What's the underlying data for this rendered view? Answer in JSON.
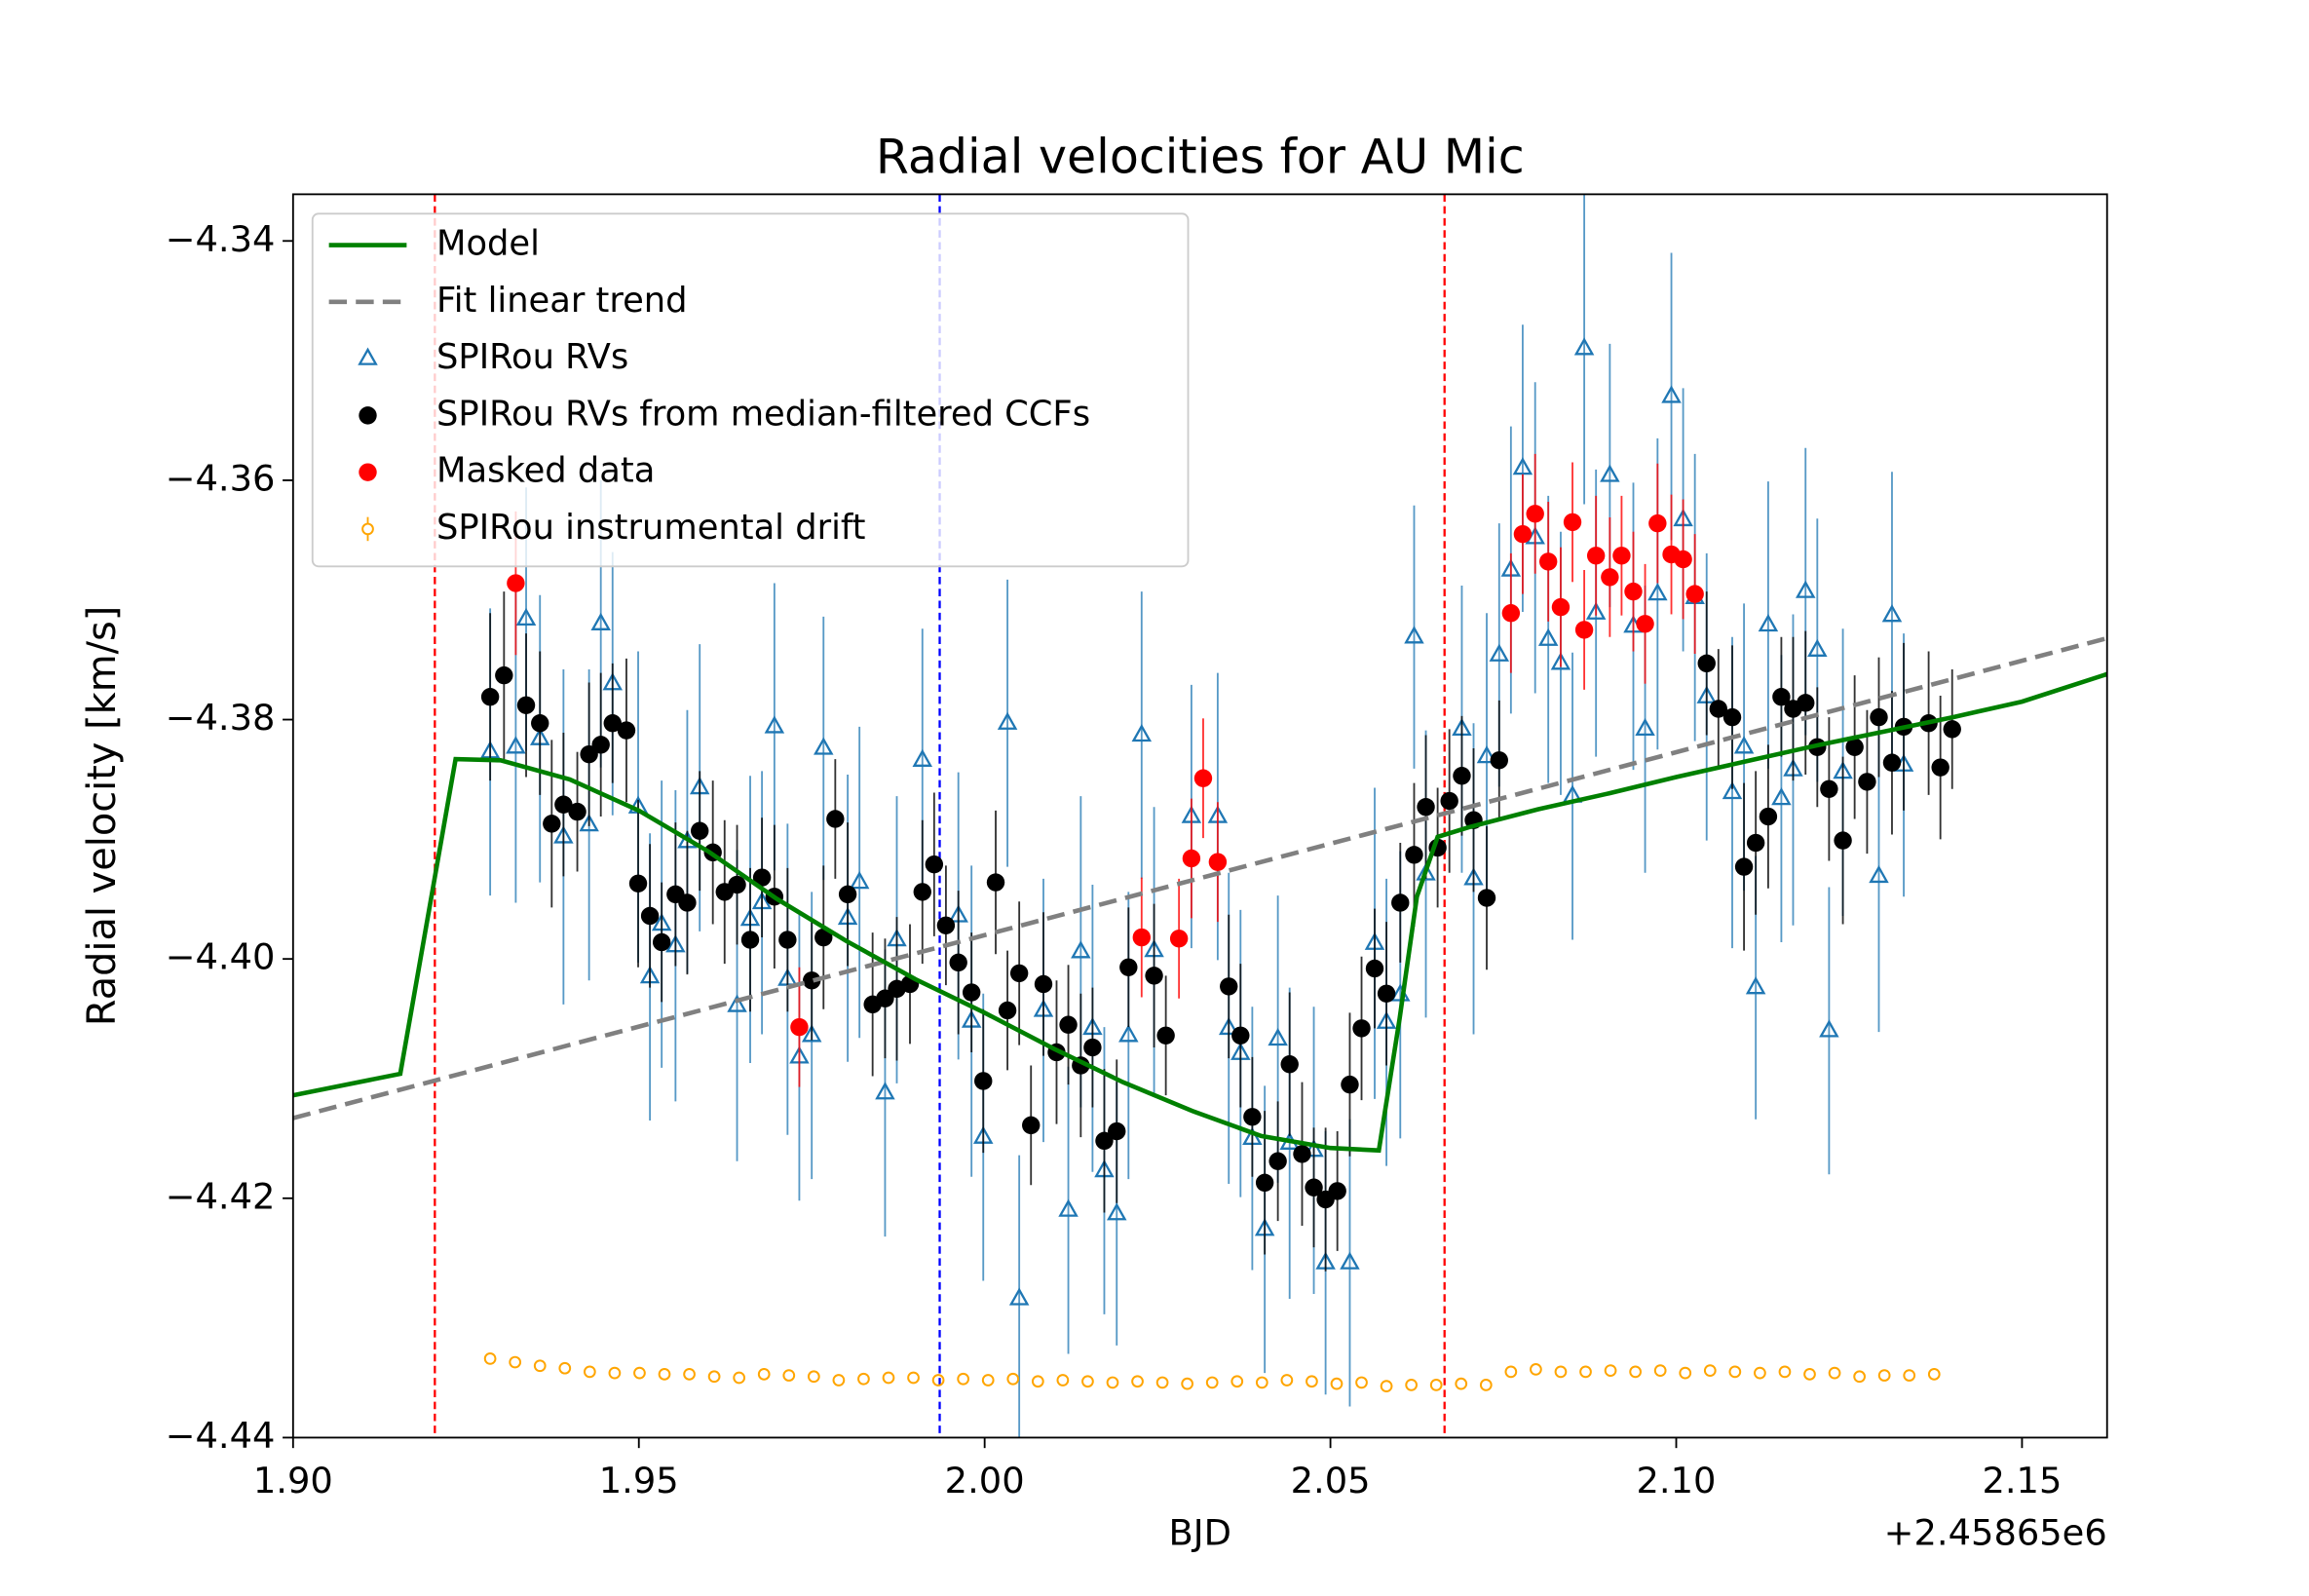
{
  "chart_data": {
    "type": "scatter",
    "title": "Radial velocities for AU Mic",
    "x_label": "BJD",
    "y_label": "Radial velocity [km/s]",
    "x_offset_label": "+2.45865e6",
    "xlim": [
      1.9,
      2.1623
    ],
    "ylim": [
      -4.44,
      -4.3361
    ],
    "xticks": [
      {
        "value": 1.9,
        "label": "1.90"
      },
      {
        "value": 1.95,
        "label": "1.95"
      },
      {
        "value": 2.0,
        "label": "2.00"
      },
      {
        "value": 2.05,
        "label": "2.05"
      },
      {
        "value": 2.1,
        "label": "2.10"
      },
      {
        "value": 2.15,
        "label": "2.15"
      }
    ],
    "yticks": [
      {
        "value": -4.44,
        "label": "−4.44"
      },
      {
        "value": -4.42,
        "label": "−4.42"
      },
      {
        "value": -4.4,
        "label": "−4.40"
      },
      {
        "value": -4.38,
        "label": "−4.38"
      },
      {
        "value": -4.36,
        "label": "−4.36"
      },
      {
        "value": -4.34,
        "label": "−4.34"
      }
    ],
    "grid": false,
    "legend": "upper left",
    "vlines": [
      {
        "value": 1.9205,
        "color": "#ff0000"
      },
      {
        "value": 1.9935,
        "color": "#0000ff"
      },
      {
        "value": 2.0665,
        "color": "#ff0000"
      }
    ],
    "series": [
      {
        "name": "Model",
        "color": "#008000",
        "marker": "line",
        "x": [
          1.9,
          1.9155,
          1.9235,
          1.93,
          1.94,
          1.95,
          1.96,
          1.97,
          1.98,
          1.99,
          2.0,
          2.01,
          2.02,
          2.03,
          2.04,
          2.05,
          2.057,
          2.06,
          2.0625,
          2.0655,
          2.07,
          2.08,
          2.09,
          2.1,
          2.11,
          2.12,
          2.13,
          2.14,
          2.15,
          2.1623
        ],
        "values": [
          -4.4114,
          -4.4096,
          -4.3833,
          -4.3834,
          -4.385,
          -4.3876,
          -4.391,
          -4.395,
          -4.3985,
          -4.4017,
          -4.4045,
          -4.4075,
          -4.4103,
          -4.4127,
          -4.4148,
          -4.4158,
          -4.416,
          -4.405,
          -4.3948,
          -4.3898,
          -4.389,
          -4.3875,
          -4.3862,
          -4.3848,
          -4.3835,
          -4.3822,
          -4.381,
          -4.3798,
          -4.3785,
          -4.3762
        ]
      },
      {
        "name": "Fit linear trend",
        "color": "#808080",
        "marker": "dashed",
        "x": [
          1.9,
          2.1623
        ],
        "values": [
          -4.4133,
          -4.3732
        ]
      },
      {
        "name": "SPIRou RVs",
        "color": "#1f77b4",
        "marker": "triangle",
        "x": [
          1.9285,
          1.9322,
          1.9337,
          1.9357,
          1.9391,
          1.9428,
          1.9445,
          1.9462,
          1.9499,
          1.9516,
          1.9533,
          1.9553,
          1.957,
          1.9588,
          1.9642,
          1.9661,
          1.9678,
          1.9696,
          1.9715,
          1.9732,
          1.975,
          1.9767,
          1.9802,
          1.9819,
          1.9856,
          1.9873,
          1.991,
          1.9962,
          1.9981,
          1.9998,
          2.0033,
          2.005,
          2.0085,
          2.0121,
          2.0139,
          2.0156,
          2.0173,
          2.0191,
          2.0208,
          2.0227,
          2.0245,
          2.0299,
          2.0337,
          2.0353,
          2.037,
          2.0387,
          2.0405,
          2.0424,
          2.0441,
          2.0476,
          2.0493,
          2.0528,
          2.0564,
          2.0581,
          2.0601,
          2.0621,
          2.0638,
          2.069,
          2.0707,
          2.0726,
          2.0744,
          2.0761,
          2.0778,
          2.0796,
          2.0815,
          2.0833,
          2.085,
          2.0867,
          2.0884,
          2.0904,
          2.0938,
          2.0955,
          2.0973,
          2.0993,
          2.101,
          2.1027,
          2.1044,
          2.1081,
          2.1098,
          2.1115,
          2.1133,
          2.1152,
          2.1169,
          2.1187,
          2.1204,
          2.1221,
          2.1241,
          2.1293,
          2.1312,
          2.1329
        ],
        "values": [
          -4.3827,
          -4.3823,
          -4.3716,
          -4.3816,
          -4.3898,
          -4.3888,
          -4.372,
          -4.377,
          -4.3873,
          -4.4015,
          -4.3971,
          -4.3989,
          -4.3902,
          -4.3857,
          -4.4039,
          -4.3967,
          -4.3953,
          -4.3806,
          -4.4017,
          -4.4082,
          -4.4064,
          -4.3824,
          -4.3966,
          -4.3936,
          -4.4112,
          -4.3984,
          -4.3834,
          -4.3964,
          -4.4052,
          -4.4149,
          -4.3803,
          -4.4284,
          -4.4043,
          -4.421,
          -4.3994,
          -4.4058,
          -4.4177,
          -4.4213,
          -4.4064,
          -4.3813,
          -4.3993,
          -4.3881,
          -4.3881,
          -4.4058,
          -4.4079,
          -4.415,
          -4.4226,
          -4.4067,
          -4.4154,
          -4.416,
          -4.4254,
          -4.4254,
          -4.3987,
          -4.4053,
          -4.403,
          -4.3731,
          -4.3929,
          -4.3808,
          -4.3933,
          -4.3831,
          -4.3746,
          -4.3675,
          -4.359,
          -4.3648,
          -4.3733,
          -4.3753,
          -4.3864,
          -4.349,
          -4.3711,
          -4.3596,
          -4.3722,
          -4.3808,
          -4.3695,
          -4.353,
          -4.3633,
          -4.3698,
          -4.3781,
          -4.3861,
          -4.3823,
          -4.4024,
          -4.3721,
          -4.3866,
          -4.3842,
          -4.3693,
          -4.3742,
          -4.406,
          -4.3844,
          -4.3931,
          -4.3713,
          -4.3838
        ],
        "errors": [
          0.012,
          0.013,
          0.011,
          0.012,
          0.014,
          0.013,
          0.012,
          0.011,
          0.013,
          0.012,
          0.012,
          0.013,
          0.011,
          0.012,
          0.013,
          0.012,
          0.011,
          0.012,
          0.013,
          0.012,
          0.012,
          0.011,
          0.012,
          0.013,
          0.012,
          0.012,
          0.011,
          0.012,
          0.013,
          0.012,
          0.012,
          0.012,
          0.011,
          0.012,
          0.013,
          0.012,
          0.012,
          0.011,
          0.012,
          0.012,
          0.012,
          0.011,
          0.012,
          0.013,
          0.012,
          0.011,
          0.012,
          0.012,
          0.013,
          0.012,
          0.011,
          0.012,
          0.013,
          0.012,
          0.012,
          0.011,
          0.012,
          0.012,
          0.013,
          0.012,
          0.011,
          0.012,
          0.012,
          0.013,
          0.012,
          0.011,
          0.012,
          0.013,
          0.012,
          0.011,
          0.012,
          0.012,
          0.013,
          0.012,
          0.011,
          0.012,
          0.012,
          0.013,
          0.012,
          0.011,
          0.012,
          0.012,
          0.013,
          0.012,
          0.011,
          0.012,
          0.012,
          0.013,
          0.012,
          0.011
        ]
      },
      {
        "name": "SPIRou RVs from median-filtered CCFs",
        "color": "#000000",
        "marker": "circle",
        "x": [
          1.9285,
          1.9305,
          1.9337,
          1.9357,
          1.9374,
          1.9391,
          1.9411,
          1.9428,
          1.9445,
          1.9462,
          1.9482,
          1.9499,
          1.9516,
          1.9533,
          1.9553,
          1.957,
          1.9588,
          1.9607,
          1.9624,
          1.9642,
          1.9661,
          1.9678,
          1.9696,
          1.9715,
          1.975,
          1.9767,
          1.9784,
          1.9802,
          1.9838,
          1.9856,
          1.9873,
          1.9892,
          1.991,
          1.9927,
          1.9944,
          1.9962,
          1.9981,
          1.9998,
          2.0016,
          2.0033,
          2.005,
          2.0067,
          2.0085,
          2.0104,
          2.0121,
          2.0139,
          2.0156,
          2.0173,
          2.0191,
          2.0208,
          2.0245,
          2.0262,
          2.0353,
          2.037,
          2.0387,
          2.0405,
          2.0424,
          2.0441,
          2.0459,
          2.0476,
          2.0493,
          2.051,
          2.0528,
          2.0545,
          2.0564,
          2.0581,
          2.0601,
          2.0621,
          2.0638,
          2.0655,
          2.0672,
          2.069,
          2.0707,
          2.0726,
          2.0744,
          2.1044,
          2.1061,
          2.1081,
          2.1098,
          2.1115,
          2.1133,
          2.1152,
          2.1169,
          2.1187,
          2.1204,
          2.1221,
          2.1241,
          2.1258,
          2.1276,
          2.1293,
          2.1312,
          2.1329,
          2.1365,
          2.1382,
          2.1399
        ],
        "values": [
          -4.3781,
          -4.3763,
          -4.3788,
          -4.3803,
          -4.3887,
          -4.3871,
          -4.3877,
          -4.3829,
          -4.3821,
          -4.3803,
          -4.3809,
          -4.3937,
          -4.3964,
          -4.3986,
          -4.3946,
          -4.3953,
          -4.3893,
          -4.3911,
          -4.3944,
          -4.3938,
          -4.3984,
          -4.3932,
          -4.3948,
          -4.3984,
          -4.4018,
          -4.3982,
          -4.3883,
          -4.3946,
          -4.4038,
          -4.4033,
          -4.4025,
          -4.4021,
          -4.3944,
          -4.3921,
          -4.3972,
          -4.4003,
          -4.4028,
          -4.4102,
          -4.3936,
          -4.4043,
          -4.4012,
          -4.4139,
          -4.4021,
          -4.4078,
          -4.4055,
          -4.4089,
          -4.4074,
          -4.4152,
          -4.4144,
          -4.4007,
          -4.4014,
          -4.4064,
          -4.4023,
          -4.4064,
          -4.4132,
          -4.4187,
          -4.4169,
          -4.4088,
          -4.4163,
          -4.4191,
          -4.4201,
          -4.4194,
          -4.4105,
          -4.4058,
          -4.4008,
          -4.4029,
          -4.3953,
          -4.3913,
          -4.3873,
          -4.3907,
          -4.3868,
          -4.3847,
          -4.3884,
          -4.3949,
          -4.3834,
          -4.3753,
          -4.3791,
          -4.3798,
          -4.3923,
          -4.3903,
          -4.3881,
          -4.3781,
          -4.3791,
          -4.3786,
          -4.3823,
          -4.3858,
          -4.3901,
          -4.3823,
          -4.3852,
          -4.3798,
          -4.3836,
          -4.3806,
          -4.3803,
          -4.384,
          -4.3808
        ],
        "errors": [
          0.007,
          0.007,
          0.006,
          0.006,
          0.007,
          0.006,
          0.005,
          0.006,
          0.006,
          0.005,
          0.006,
          0.007,
          0.006,
          0.005,
          0.006,
          0.006,
          0.005,
          0.006,
          0.006,
          0.005,
          0.006,
          0.005,
          0.006,
          0.006,
          0.005,
          0.006,
          0.005,
          0.006,
          0.006,
          0.005,
          0.006,
          0.005,
          0.006,
          0.006,
          0.005,
          0.006,
          0.005,
          0.006,
          0.006,
          0.005,
          0.006,
          0.005,
          0.006,
          0.006,
          0.005,
          0.006,
          0.005,
          0.006,
          0.006,
          0.005,
          0.006,
          0.005,
          0.006,
          0.006,
          0.005,
          0.006,
          0.005,
          0.006,
          0.006,
          0.005,
          0.006,
          0.005,
          0.006,
          0.006,
          0.005,
          0.006,
          0.005,
          0.006,
          0.006,
          0.005,
          0.006,
          0.005,
          0.006,
          0.006,
          0.005,
          0.006,
          0.005,
          0.006,
          0.007,
          0.006,
          0.006,
          0.005,
          0.006,
          0.006,
          0.005,
          0.006,
          0.007,
          0.006,
          0.006,
          0.005,
          0.006,
          0.007,
          0.006,
          0.006,
          0.005
        ]
      },
      {
        "name": "Masked data",
        "color": "#ff0000",
        "marker": "circle",
        "x": [
          1.9322,
          1.9732,
          2.0227,
          2.0281,
          2.0299,
          2.0316,
          2.0337,
          2.0761,
          2.0778,
          2.0796,
          2.0815,
          2.0833,
          2.085,
          2.0867,
          2.0884,
          2.0904,
          2.0921,
          2.0938,
          2.0955,
          2.0973,
          2.0993,
          2.101,
          2.1027
        ],
        "values": [
          -4.3686,
          -4.4057,
          -4.3982,
          -4.3983,
          -4.3916,
          -4.3849,
          -4.3919,
          -4.3711,
          -4.3645,
          -4.3628,
          -4.3668,
          -4.3706,
          -4.3635,
          -4.3725,
          -4.3663,
          -4.3681,
          -4.3663,
          -4.3693,
          -4.372,
          -4.3636,
          -4.3662,
          -4.3666,
          -4.3695
        ],
        "errors": [
          0.006,
          0.005,
          0.005,
          0.005,
          0.005,
          0.005,
          0.005,
          0.005,
          0.005,
          0.005,
          0.005,
          0.005,
          0.005,
          0.005,
          0.005,
          0.005,
          0.005,
          0.005,
          0.005,
          0.005,
          0.005,
          0.005,
          0.005
        ]
      },
      {
        "name": "SPIRou instrumental drift",
        "color": "#ffa500",
        "marker": "open-circle",
        "x": [
          1.9285,
          1.9321,
          1.9357,
          1.9393,
          1.9429,
          1.9465,
          1.9501,
          1.9537,
          1.9573,
          1.9609,
          1.9645,
          1.9681,
          1.9717,
          1.9753,
          1.9789,
          1.9825,
          1.9861,
          1.9897,
          1.9933,
          1.9969,
          2.0005,
          2.0041,
          2.0077,
          2.0113,
          2.0149,
          2.0185,
          2.0221,
          2.0257,
          2.0293,
          2.0329,
          2.0365,
          2.0401,
          2.0437,
          2.0473,
          2.0509,
          2.0545,
          2.0581,
          2.0617,
          2.0653,
          2.0689,
          2.0725,
          2.0761,
          2.0797,
          2.0833,
          2.0869,
          2.0905,
          2.0941,
          2.0977,
          2.1013,
          2.1049,
          2.1085,
          2.1121,
          2.1157,
          2.1193,
          2.1229,
          2.1265,
          2.1301,
          2.1337,
          2.1373
        ],
        "values": [
          -4.4334,
          -4.4337,
          -4.434,
          -4.4342,
          -4.4345,
          -4.4346,
          -4.4346,
          -4.4347,
          -4.4347,
          -4.4349,
          -4.435,
          -4.4347,
          -4.4348,
          -4.4349,
          -4.4352,
          -4.4351,
          -4.435,
          -4.435,
          -4.4352,
          -4.4351,
          -4.4352,
          -4.4351,
          -4.4353,
          -4.4352,
          -4.4353,
          -4.4354,
          -4.4353,
          -4.4354,
          -4.4355,
          -4.4354,
          -4.4353,
          -4.4354,
          -4.4352,
          -4.4353,
          -4.4355,
          -4.4354,
          -4.4357,
          -4.4356,
          -4.4356,
          -4.4355,
          -4.4356,
          -4.4345,
          -4.4343,
          -4.4345,
          -4.4345,
          -4.4344,
          -4.4345,
          -4.4344,
          -4.4346,
          -4.4344,
          -4.4345,
          -4.4346,
          -4.4345,
          -4.4347,
          -4.4346,
          -4.4349,
          -4.4348,
          -4.4348,
          -4.4347
        ]
      }
    ]
  }
}
